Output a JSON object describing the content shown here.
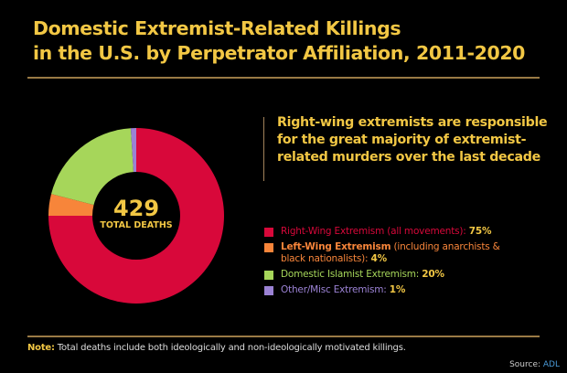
{
  "title_line1": "Domestic Extremist-Related Killings",
  "title_line2": "in the U.S. by Perpetrator Affiliation, 2011-2020",
  "center": {
    "total": "429",
    "label": "TOTAL DEATHS"
  },
  "callout": "Right-wing extremists are responsible for the great majority of extremist-related murders over the last decade",
  "legend": [
    {
      "name": "Right-Wing Extremism (all movements):",
      "pct": "75%",
      "color": "#d8083a"
    },
    {
      "name_bold": "Left-Wing Extremism",
      "name_rest": " (including anarchists & black nationalists):",
      "pct": "4%",
      "color": "#f7853a"
    },
    {
      "name": "Domestic Islamist Extremism:",
      "pct": "20%",
      "color": "#a6d65a"
    },
    {
      "name": "Other/Misc Extremism:",
      "pct": "1%",
      "color": "#9b82d4"
    }
  ],
  "note": {
    "label": "Note:",
    "text": " Total deaths include both ideologically and non-ideologically motivated killings."
  },
  "source": {
    "label": "Source: ",
    "link": "ADL"
  },
  "chart_data": {
    "type": "pie",
    "subtype": "donut",
    "title": "Domestic Extremist-Related Killings in the U.S. by Perpetrator Affiliation, 2011-2020",
    "categories": [
      "Right-Wing Extremism (all movements)",
      "Left-Wing Extremism (including anarchists & black nationalists)",
      "Domestic Islamist Extremism",
      "Other/Misc Extremism"
    ],
    "values": [
      75,
      4,
      20,
      1
    ],
    "unit": "%",
    "colors": [
      "#d8083a",
      "#f7853a",
      "#a6d65a",
      "#9b82d4"
    ],
    "center_label": "429 TOTAL DEATHS",
    "legend_position": "right"
  }
}
